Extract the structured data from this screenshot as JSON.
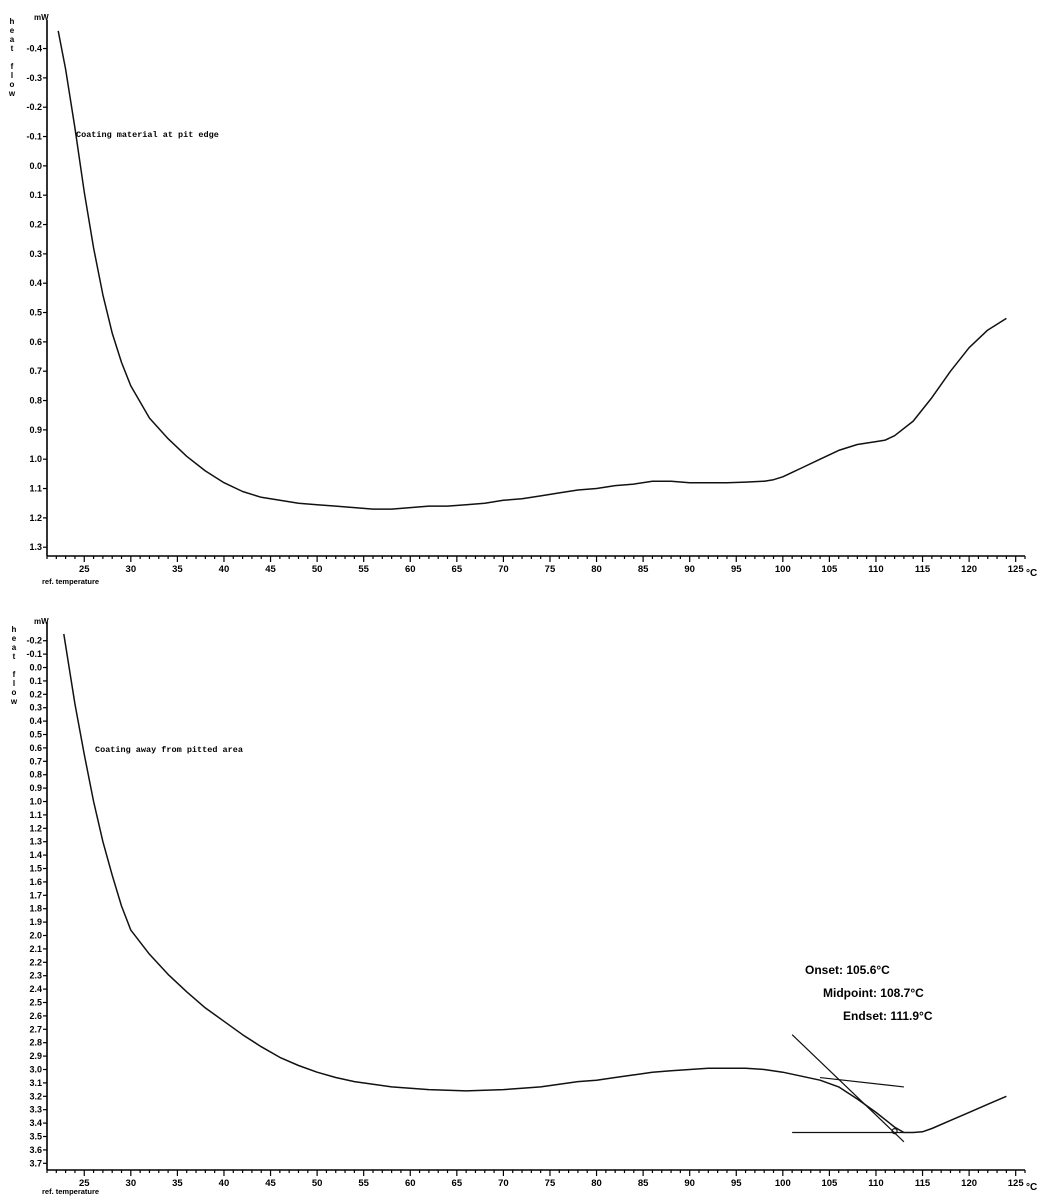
{
  "chart_data": [
    {
      "type": "line",
      "annotation": "Coating material at pit edge",
      "xlabel": "ref. temperature",
      "x_unit": "°C",
      "ylabel": "heat flow",
      "y_unit": "mW",
      "y_axis_inverted": true,
      "grid": false,
      "xlim": [
        21,
        126
      ],
      "ylim": [
        -0.47,
        1.33
      ],
      "x_ticks": [
        "25",
        "30",
        "35",
        "40",
        "45",
        "50",
        "55",
        "60",
        "65",
        "70",
        "75",
        "80",
        "85",
        "90",
        "95",
        "100",
        "105",
        "110",
        "115",
        "120",
        "125"
      ],
      "y_ticks": [
        "-0.4",
        "-0.3",
        "-0.2",
        "-0.1",
        "0.0",
        "0.1",
        "0.2",
        "0.3",
        "0.4",
        "0.5",
        "0.6",
        "0.7",
        "0.8",
        "0.9",
        "1.0",
        "1.1",
        "1.2",
        "1.3"
      ],
      "series": [
        {
          "x": [
            22.2,
            23,
            24,
            25,
            26,
            27,
            28,
            29,
            30,
            32,
            34,
            36,
            38,
            40,
            42,
            44,
            46,
            48,
            50,
            52,
            54,
            56,
            58,
            60,
            62,
            64,
            66,
            68,
            70,
            72,
            74,
            76,
            78,
            80,
            82,
            84,
            86,
            88,
            90,
            92,
            94,
            96,
            98,
            99,
            100,
            101,
            102,
            104,
            106,
            108,
            110,
            111,
            112,
            114,
            116,
            118,
            120,
            122,
            124
          ],
          "y": [
            -0.46,
            -0.33,
            -0.13,
            0.09,
            0.28,
            0.44,
            0.57,
            0.67,
            0.75,
            0.86,
            0.93,
            0.99,
            1.04,
            1.08,
            1.11,
            1.13,
            1.14,
            1.15,
            1.155,
            1.16,
            1.165,
            1.17,
            1.17,
            1.165,
            1.16,
            1.16,
            1.155,
            1.15,
            1.14,
            1.135,
            1.125,
            1.115,
            1.105,
            1.1,
            1.09,
            1.085,
            1.075,
            1.075,
            1.08,
            1.08,
            1.08,
            1.078,
            1.075,
            1.07,
            1.06,
            1.045,
            1.03,
            1.0,
            0.97,
            0.95,
            0.94,
            0.935,
            0.92,
            0.87,
            0.79,
            0.7,
            0.62,
            0.56,
            0.52
          ]
        }
      ]
    },
    {
      "type": "line",
      "annotation": "Coating away from pitted area",
      "xlabel": "ref. temperature",
      "x_unit": "°C",
      "ylabel": "heat flow",
      "y_unit": "mW",
      "y_axis_inverted": true,
      "grid": false,
      "xlim": [
        21,
        126
      ],
      "ylim": [
        -0.28,
        3.75
      ],
      "x_ticks": [
        "25",
        "30",
        "35",
        "40",
        "45",
        "50",
        "55",
        "60",
        "65",
        "70",
        "75",
        "80",
        "85",
        "90",
        "95",
        "100",
        "105",
        "110",
        "115",
        "120",
        "125"
      ],
      "y_ticks": [
        "-0.2",
        "-0.1",
        "0.0",
        "0.1",
        "0.2",
        "0.3",
        "0.4",
        "0.5",
        "0.6",
        "0.7",
        "0.8",
        "0.9",
        "1.0",
        "1.1",
        "1.2",
        "1.3",
        "1.4",
        "1.5",
        "1.6",
        "1.7",
        "1.8",
        "1.9",
        "2.0",
        "2.1",
        "2.2",
        "2.3",
        "2.4",
        "2.5",
        "2.6",
        "2.7",
        "2.8",
        "2.9",
        "3.0",
        "3.1",
        "3.2",
        "3.3",
        "3.4",
        "3.5",
        "3.6",
        "3.7"
      ],
      "series": [
        {
          "x": [
            22.8,
            24,
            25,
            26,
            27,
            28,
            29,
            30,
            32,
            34,
            36,
            38,
            40,
            42,
            44,
            46,
            48,
            50,
            52,
            54,
            56,
            58,
            60,
            62,
            64,
            66,
            68,
            70,
            72,
            74,
            76,
            78,
            80,
            82,
            84,
            86,
            88,
            90,
            92,
            94,
            96,
            98,
            100,
            102,
            104,
            106,
            108,
            110,
            112,
            113,
            114,
            115,
            116,
            118,
            120,
            122,
            124
          ],
          "y": [
            -0.25,
            0.27,
            0.65,
            1.0,
            1.3,
            1.55,
            1.78,
            1.96,
            2.14,
            2.29,
            2.42,
            2.54,
            2.64,
            2.74,
            2.83,
            2.91,
            2.97,
            3.02,
            3.06,
            3.09,
            3.11,
            3.13,
            3.14,
            3.15,
            3.155,
            3.16,
            3.155,
            3.15,
            3.14,
            3.13,
            3.11,
            3.09,
            3.08,
            3.06,
            3.04,
            3.02,
            3.01,
            3.0,
            2.99,
            2.99,
            2.99,
            3.0,
            3.02,
            3.05,
            3.08,
            3.13,
            3.22,
            3.32,
            3.43,
            3.47,
            3.47,
            3.465,
            3.44,
            3.38,
            3.32,
            3.26,
            3.2
          ]
        }
      ],
      "results": {
        "onset": "Onset: 105.6°C",
        "midpoint": "Midpoint: 108.7°C",
        "endset": "Endset: 111.9°C"
      }
    }
  ]
}
